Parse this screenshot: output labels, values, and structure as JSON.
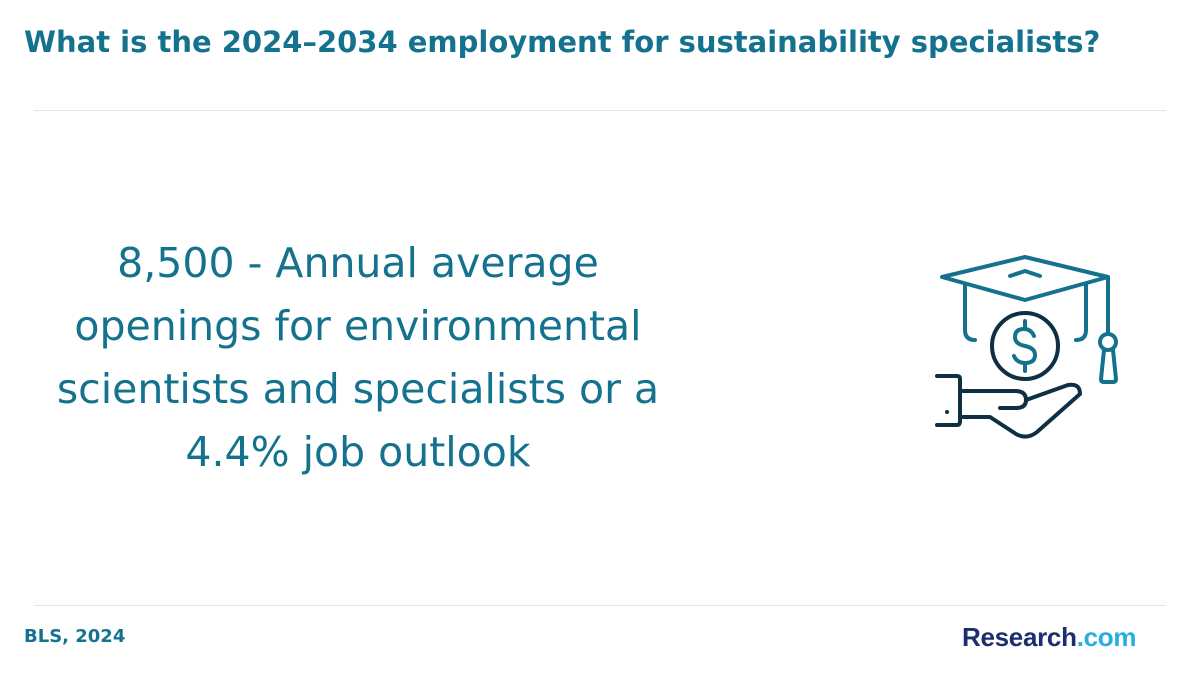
{
  "title": "What is the 2024–2034 employment for sustainability specialists?",
  "stat_text": "8,500 - Annual average openings for environmental scientists and specialists or a 4.4% job outlook",
  "icon": "graduation-cap-money-hand-icon",
  "source": "BLS, 2024",
  "logo": {
    "main": "Research",
    "ext": ".com"
  },
  "colors": {
    "title": "#15728f",
    "stat": "#15728f",
    "icon_primary": "#15728f",
    "icon_dark": "#0f2f44",
    "logo_main": "#1b2f6e",
    "logo_ext": "#27aee0"
  }
}
